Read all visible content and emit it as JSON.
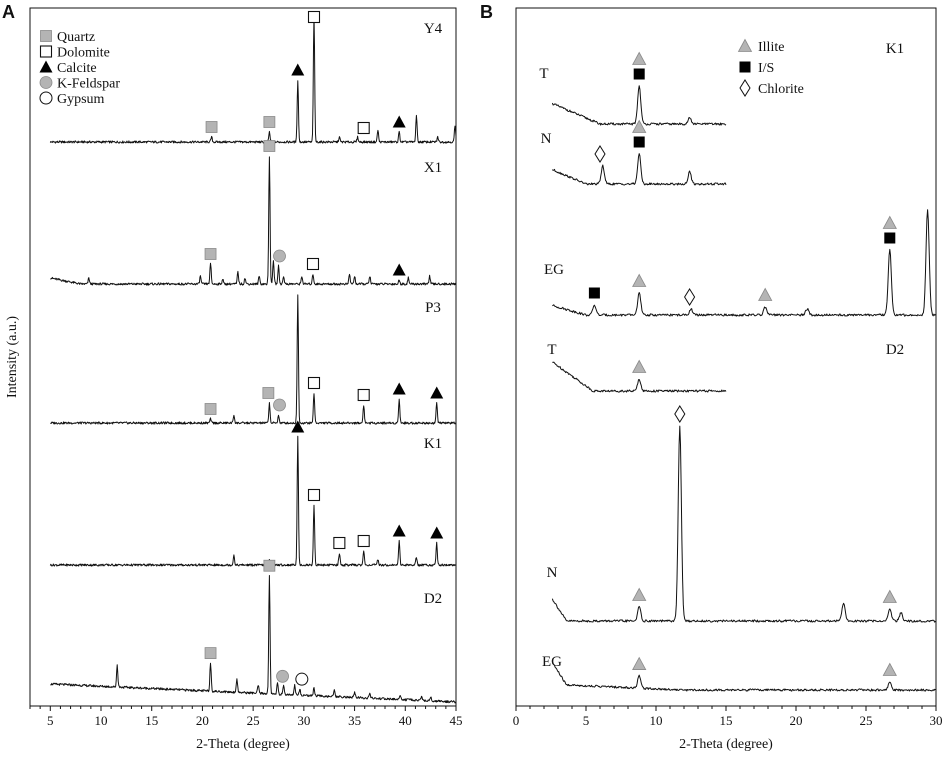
{
  "chart_data": [
    {
      "panel": "A",
      "type": "line",
      "xlabel": "2-Theta (degree)",
      "ylabel": "Intensity (a.u.)",
      "xlim": [
        3,
        45
      ],
      "xticks": [
        "5",
        "10",
        "15",
        "20",
        "25",
        "30",
        "35",
        "40",
        "45"
      ],
      "legend": {
        "placement": "top-left",
        "entries": [
          {
            "label": "Quartz",
            "marker": "filled-square",
            "color": "#b4b4b4"
          },
          {
            "label": "Dolomite",
            "marker": "open-square",
            "color": "#000000"
          },
          {
            "label": "Calcite",
            "marker": "filled-triangle",
            "color": "#000000"
          },
          {
            "label": "K-Feldspar",
            "marker": "filled-circle",
            "color": "#b4b4b4"
          },
          {
            "label": "Gypsum",
            "marker": "open-circle",
            "color": "#000000"
          }
        ]
      },
      "series": [
        {
          "name": "Y4",
          "peaks": [
            [
              20.9,
              5
            ],
            [
              26.6,
              10
            ],
            [
              29.4,
              62
            ],
            [
              31.0,
              128
            ],
            [
              33.5,
              5
            ],
            [
              35.3,
              5
            ],
            [
              37.3,
              12
            ],
            [
              39.4,
              10
            ],
            [
              41.1,
              26
            ],
            [
              43.2,
              5
            ],
            [
              44.9,
              16
            ]
          ],
          "markers": [
            [
              20.9,
              "Quartz"
            ],
            [
              26.6,
              "Quartz"
            ],
            [
              29.4,
              "Calcite"
            ],
            [
              31.0,
              "Dolomite"
            ],
            [
              35.9,
              "Dolomite"
            ],
            [
              39.4,
              "Calcite"
            ]
          ]
        },
        {
          "name": "X1",
          "peaks": [
            [
              8.8,
              6
            ],
            [
              19.8,
              8
            ],
            [
              20.8,
              20
            ],
            [
              22.0,
              5
            ],
            [
              23.5,
              12
            ],
            [
              24.2,
              6
            ],
            [
              25.6,
              8
            ],
            [
              26.6,
              128
            ],
            [
              27.0,
              24
            ],
            [
              27.5,
              18
            ],
            [
              28.0,
              8
            ],
            [
              29.8,
              8
            ],
            [
              30.9,
              10
            ],
            [
              34.5,
              10
            ],
            [
              35.0,
              8
            ],
            [
              36.5,
              8
            ],
            [
              39.4,
              4
            ],
            [
              40.3,
              6
            ],
            [
              42.4,
              8
            ]
          ],
          "markers": [
            [
              20.8,
              "Quartz"
            ],
            [
              26.6,
              "Quartz"
            ],
            [
              27.6,
              "K-Feldspar"
            ],
            [
              30.9,
              "Dolomite"
            ],
            [
              39.4,
              "Calcite"
            ]
          ]
        },
        {
          "name": "P3",
          "peaks": [
            [
              20.8,
              4
            ],
            [
              23.1,
              8
            ],
            [
              26.6,
              20
            ],
            [
              27.5,
              8
            ],
            [
              29.4,
              128
            ],
            [
              31.0,
              30
            ],
            [
              35.9,
              18
            ],
            [
              39.4,
              24
            ],
            [
              43.1,
              20
            ]
          ],
          "markers": [
            [
              20.8,
              "Quartz"
            ],
            [
              26.5,
              "Quartz"
            ],
            [
              27.6,
              "K-Feldspar"
            ],
            [
              31.0,
              "Dolomite"
            ],
            [
              35.9,
              "Dolomite"
            ],
            [
              39.4,
              "Calcite"
            ],
            [
              43.1,
              "Calcite"
            ]
          ]
        },
        {
          "name": "K1",
          "peaks": [
            [
              23.1,
              10
            ],
            [
              26.6,
              5
            ],
            [
              29.4,
              128
            ],
            [
              31.0,
              60
            ],
            [
              33.5,
              12
            ],
            [
              35.9,
              14
            ],
            [
              37.3,
              5
            ],
            [
              39.4,
              24
            ],
            [
              41.1,
              8
            ],
            [
              43.1,
              22
            ]
          ],
          "markers": [
            [
              29.4,
              "Calcite"
            ],
            [
              31.0,
              "Dolomite"
            ],
            [
              33.5,
              "Dolomite"
            ],
            [
              35.9,
              "Dolomite"
            ],
            [
              39.4,
              "Calcite"
            ],
            [
              43.1,
              "Calcite"
            ]
          ]
        },
        {
          "name": "D2",
          "peaks": [
            [
              11.6,
              22
            ],
            [
              20.8,
              28
            ],
            [
              23.4,
              14
            ],
            [
              25.5,
              8
            ],
            [
              26.6,
              118
            ],
            [
              27.4,
              12
            ],
            [
              28.0,
              8
            ],
            [
              29.1,
              10
            ],
            [
              29.6,
              6
            ],
            [
              31.0,
              8
            ],
            [
              33.0,
              6
            ],
            [
              35.0,
              5
            ],
            [
              36.5,
              5
            ],
            [
              39.5,
              5
            ],
            [
              41.6,
              4
            ],
            [
              42.5,
              4
            ]
          ],
          "markers": [
            [
              20.8,
              "Quartz"
            ],
            [
              26.6,
              "Quartz"
            ],
            [
              27.9,
              "K-Feldspar"
            ],
            [
              29.8,
              "Gypsum"
            ]
          ]
        }
      ]
    },
    {
      "panel": "B",
      "type": "line",
      "xlabel": "2-Theta (degree)",
      "xlim": [
        0,
        30
      ],
      "xticks": [
        "0",
        "5",
        "10",
        "15",
        "20",
        "25",
        "30"
      ],
      "legend": {
        "placement": "top-right",
        "entries": [
          {
            "label": "Illite",
            "marker": "filled-triangle",
            "color": "#b4b4b4"
          },
          {
            "label": "I/S",
            "marker": "filled-square",
            "color": "#000000"
          },
          {
            "label": "Chlorite",
            "marker": "open-diamond",
            "color": "#000000"
          }
        ]
      },
      "group_labels": [
        "K1",
        "D2"
      ],
      "series": [
        {
          "name": "T",
          "group": "K1",
          "xrange": [
            2.6,
            15
          ],
          "peaks": [
            [
              8.8,
              38
            ],
            [
              12.4,
              6
            ]
          ],
          "markers": [
            [
              8.8,
              "Illite"
            ],
            [
              8.8,
              "I/S"
            ]
          ]
        },
        {
          "name": "N",
          "group": "K1",
          "xrange": [
            2.6,
            15
          ],
          "peaks": [
            [
              6.2,
              18
            ],
            [
              8.8,
              30
            ],
            [
              12.4,
              12
            ]
          ],
          "markers": [
            [
              6.0,
              "Chlorite"
            ],
            [
              8.8,
              "Illite"
            ],
            [
              8.8,
              "I/S"
            ]
          ]
        },
        {
          "name": "EG",
          "group": "K1",
          "xrange": [
            2.6,
            30
          ],
          "peaks": [
            [
              5.6,
              10
            ],
            [
              8.8,
              22
            ],
            [
              12.5,
              6
            ],
            [
              17.8,
              8
            ],
            [
              20.8,
              6
            ],
            [
              26.7,
              65
            ],
            [
              29.4,
              105
            ]
          ],
          "markers": [
            [
              5.6,
              "I/S"
            ],
            [
              8.8,
              "Illite"
            ],
            [
              12.4,
              "Chlorite"
            ],
            [
              17.8,
              "Illite"
            ],
            [
              26.7,
              "Illite"
            ],
            [
              26.7,
              "I/S"
            ]
          ]
        },
        {
          "name": "T",
          "group": "D2",
          "xrange": [
            2.6,
            15
          ],
          "peaks": [
            [
              8.8,
              12
            ]
          ],
          "markers": [
            [
              8.8,
              "Illite"
            ]
          ]
        },
        {
          "name": "N",
          "group": "D2",
          "xrange": [
            2.6,
            30
          ],
          "peaks": [
            [
              8.8,
              14
            ],
            [
              11.7,
              195
            ],
            [
              23.4,
              18
            ],
            [
              26.7,
              12
            ],
            [
              27.5,
              8
            ]
          ],
          "markers": [
            [
              8.8,
              "Illite"
            ],
            [
              11.7,
              "Chlorite"
            ],
            [
              26.7,
              "Illite"
            ]
          ]
        },
        {
          "name": "EG",
          "group": "D2",
          "xrange": [
            2.6,
            30
          ],
          "peaks": [
            [
              8.8,
              12
            ],
            [
              26.7,
              8
            ]
          ],
          "markers": [
            [
              8.8,
              "Illite"
            ],
            [
              26.7,
              "Illite"
            ]
          ]
        }
      ]
    }
  ]
}
